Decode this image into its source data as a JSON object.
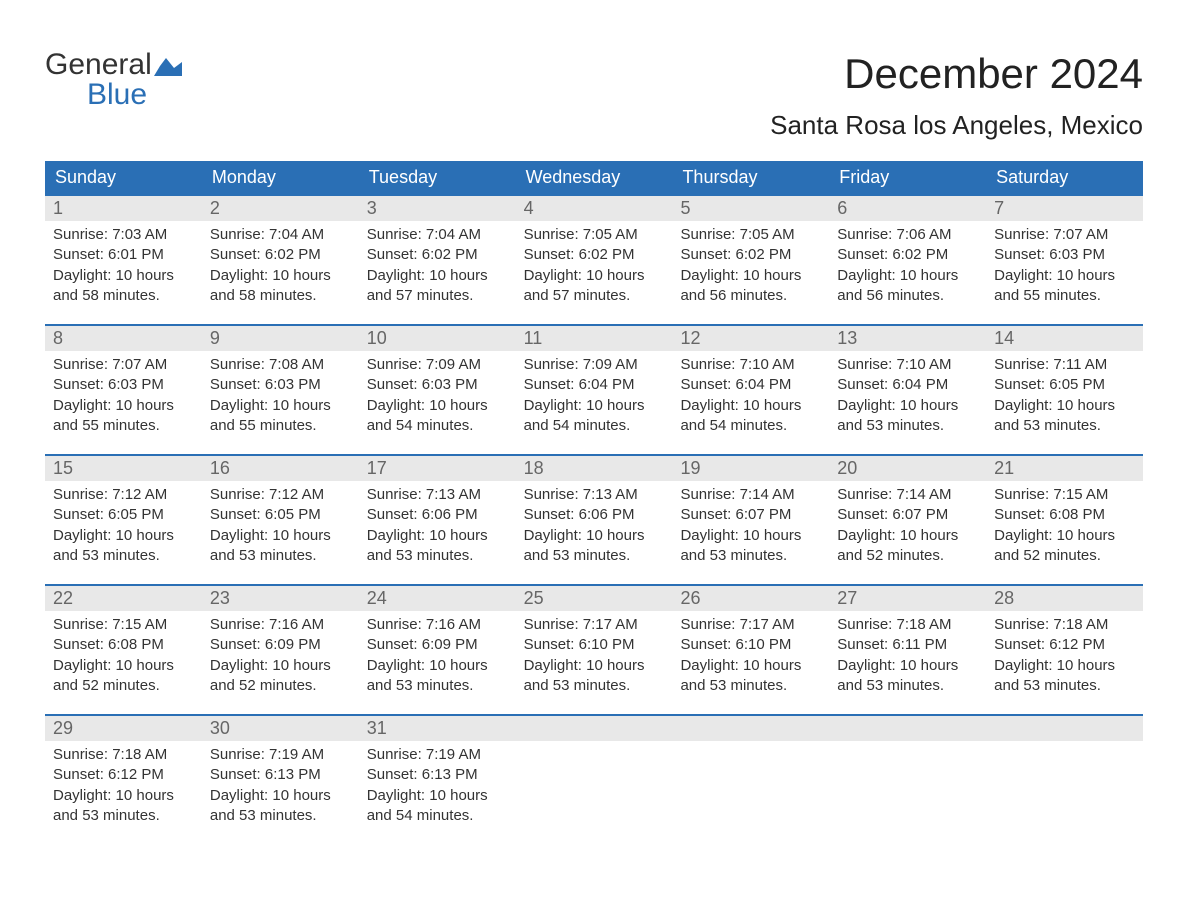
{
  "logo": {
    "text_general": "General",
    "text_blue": "Blue",
    "flag_color": "#2a6fb5"
  },
  "title": "December 2024",
  "location": "Santa Rosa los Angeles, Mexico",
  "colors": {
    "header_bg": "#2a6fb5",
    "header_text": "#ffffff",
    "daynum_bg": "#e8e8e8",
    "daynum_text": "#666666",
    "body_text": "#333333",
    "page_bg": "#ffffff",
    "week_border": "#2a6fb5"
  },
  "typography": {
    "month_title_fontsize": 42,
    "location_fontsize": 26,
    "dayheader_fontsize": 18,
    "daynum_fontsize": 18,
    "content_fontsize": 15
  },
  "day_headers": [
    "Sunday",
    "Monday",
    "Tuesday",
    "Wednesday",
    "Thursday",
    "Friday",
    "Saturday"
  ],
  "weeks": [
    [
      {
        "n": "1",
        "sunrise": "Sunrise: 7:03 AM",
        "sunset": "Sunset: 6:01 PM",
        "dl1": "Daylight: 10 hours",
        "dl2": "and 58 minutes."
      },
      {
        "n": "2",
        "sunrise": "Sunrise: 7:04 AM",
        "sunset": "Sunset: 6:02 PM",
        "dl1": "Daylight: 10 hours",
        "dl2": "and 58 minutes."
      },
      {
        "n": "3",
        "sunrise": "Sunrise: 7:04 AM",
        "sunset": "Sunset: 6:02 PM",
        "dl1": "Daylight: 10 hours",
        "dl2": "and 57 minutes."
      },
      {
        "n": "4",
        "sunrise": "Sunrise: 7:05 AM",
        "sunset": "Sunset: 6:02 PM",
        "dl1": "Daylight: 10 hours",
        "dl2": "and 57 minutes."
      },
      {
        "n": "5",
        "sunrise": "Sunrise: 7:05 AM",
        "sunset": "Sunset: 6:02 PM",
        "dl1": "Daylight: 10 hours",
        "dl2": "and 56 minutes."
      },
      {
        "n": "6",
        "sunrise": "Sunrise: 7:06 AM",
        "sunset": "Sunset: 6:02 PM",
        "dl1": "Daylight: 10 hours",
        "dl2": "and 56 minutes."
      },
      {
        "n": "7",
        "sunrise": "Sunrise: 7:07 AM",
        "sunset": "Sunset: 6:03 PM",
        "dl1": "Daylight: 10 hours",
        "dl2": "and 55 minutes."
      }
    ],
    [
      {
        "n": "8",
        "sunrise": "Sunrise: 7:07 AM",
        "sunset": "Sunset: 6:03 PM",
        "dl1": "Daylight: 10 hours",
        "dl2": "and 55 minutes."
      },
      {
        "n": "9",
        "sunrise": "Sunrise: 7:08 AM",
        "sunset": "Sunset: 6:03 PM",
        "dl1": "Daylight: 10 hours",
        "dl2": "and 55 minutes."
      },
      {
        "n": "10",
        "sunrise": "Sunrise: 7:09 AM",
        "sunset": "Sunset: 6:03 PM",
        "dl1": "Daylight: 10 hours",
        "dl2": "and 54 minutes."
      },
      {
        "n": "11",
        "sunrise": "Sunrise: 7:09 AM",
        "sunset": "Sunset: 6:04 PM",
        "dl1": "Daylight: 10 hours",
        "dl2": "and 54 minutes."
      },
      {
        "n": "12",
        "sunrise": "Sunrise: 7:10 AM",
        "sunset": "Sunset: 6:04 PM",
        "dl1": "Daylight: 10 hours",
        "dl2": "and 54 minutes."
      },
      {
        "n": "13",
        "sunrise": "Sunrise: 7:10 AM",
        "sunset": "Sunset: 6:04 PM",
        "dl1": "Daylight: 10 hours",
        "dl2": "and 53 minutes."
      },
      {
        "n": "14",
        "sunrise": "Sunrise: 7:11 AM",
        "sunset": "Sunset: 6:05 PM",
        "dl1": "Daylight: 10 hours",
        "dl2": "and 53 minutes."
      }
    ],
    [
      {
        "n": "15",
        "sunrise": "Sunrise: 7:12 AM",
        "sunset": "Sunset: 6:05 PM",
        "dl1": "Daylight: 10 hours",
        "dl2": "and 53 minutes."
      },
      {
        "n": "16",
        "sunrise": "Sunrise: 7:12 AM",
        "sunset": "Sunset: 6:05 PM",
        "dl1": "Daylight: 10 hours",
        "dl2": "and 53 minutes."
      },
      {
        "n": "17",
        "sunrise": "Sunrise: 7:13 AM",
        "sunset": "Sunset: 6:06 PM",
        "dl1": "Daylight: 10 hours",
        "dl2": "and 53 minutes."
      },
      {
        "n": "18",
        "sunrise": "Sunrise: 7:13 AM",
        "sunset": "Sunset: 6:06 PM",
        "dl1": "Daylight: 10 hours",
        "dl2": "and 53 minutes."
      },
      {
        "n": "19",
        "sunrise": "Sunrise: 7:14 AM",
        "sunset": "Sunset: 6:07 PM",
        "dl1": "Daylight: 10 hours",
        "dl2": "and 53 minutes."
      },
      {
        "n": "20",
        "sunrise": "Sunrise: 7:14 AM",
        "sunset": "Sunset: 6:07 PM",
        "dl1": "Daylight: 10 hours",
        "dl2": "and 52 minutes."
      },
      {
        "n": "21",
        "sunrise": "Sunrise: 7:15 AM",
        "sunset": "Sunset: 6:08 PM",
        "dl1": "Daylight: 10 hours",
        "dl2": "and 52 minutes."
      }
    ],
    [
      {
        "n": "22",
        "sunrise": "Sunrise: 7:15 AM",
        "sunset": "Sunset: 6:08 PM",
        "dl1": "Daylight: 10 hours",
        "dl2": "and 52 minutes."
      },
      {
        "n": "23",
        "sunrise": "Sunrise: 7:16 AM",
        "sunset": "Sunset: 6:09 PM",
        "dl1": "Daylight: 10 hours",
        "dl2": "and 52 minutes."
      },
      {
        "n": "24",
        "sunrise": "Sunrise: 7:16 AM",
        "sunset": "Sunset: 6:09 PM",
        "dl1": "Daylight: 10 hours",
        "dl2": "and 53 minutes."
      },
      {
        "n": "25",
        "sunrise": "Sunrise: 7:17 AM",
        "sunset": "Sunset: 6:10 PM",
        "dl1": "Daylight: 10 hours",
        "dl2": "and 53 minutes."
      },
      {
        "n": "26",
        "sunrise": "Sunrise: 7:17 AM",
        "sunset": "Sunset: 6:10 PM",
        "dl1": "Daylight: 10 hours",
        "dl2": "and 53 minutes."
      },
      {
        "n": "27",
        "sunrise": "Sunrise: 7:18 AM",
        "sunset": "Sunset: 6:11 PM",
        "dl1": "Daylight: 10 hours",
        "dl2": "and 53 minutes."
      },
      {
        "n": "28",
        "sunrise": "Sunrise: 7:18 AM",
        "sunset": "Sunset: 6:12 PM",
        "dl1": "Daylight: 10 hours",
        "dl2": "and 53 minutes."
      }
    ],
    [
      {
        "n": "29",
        "sunrise": "Sunrise: 7:18 AM",
        "sunset": "Sunset: 6:12 PM",
        "dl1": "Daylight: 10 hours",
        "dl2": "and 53 minutes."
      },
      {
        "n": "30",
        "sunrise": "Sunrise: 7:19 AM",
        "sunset": "Sunset: 6:13 PM",
        "dl1": "Daylight: 10 hours",
        "dl2": "and 53 minutes."
      },
      {
        "n": "31",
        "sunrise": "Sunrise: 7:19 AM",
        "sunset": "Sunset: 6:13 PM",
        "dl1": "Daylight: 10 hours",
        "dl2": "and 54 minutes."
      },
      {
        "empty": true
      },
      {
        "empty": true
      },
      {
        "empty": true
      },
      {
        "empty": true
      }
    ]
  ]
}
